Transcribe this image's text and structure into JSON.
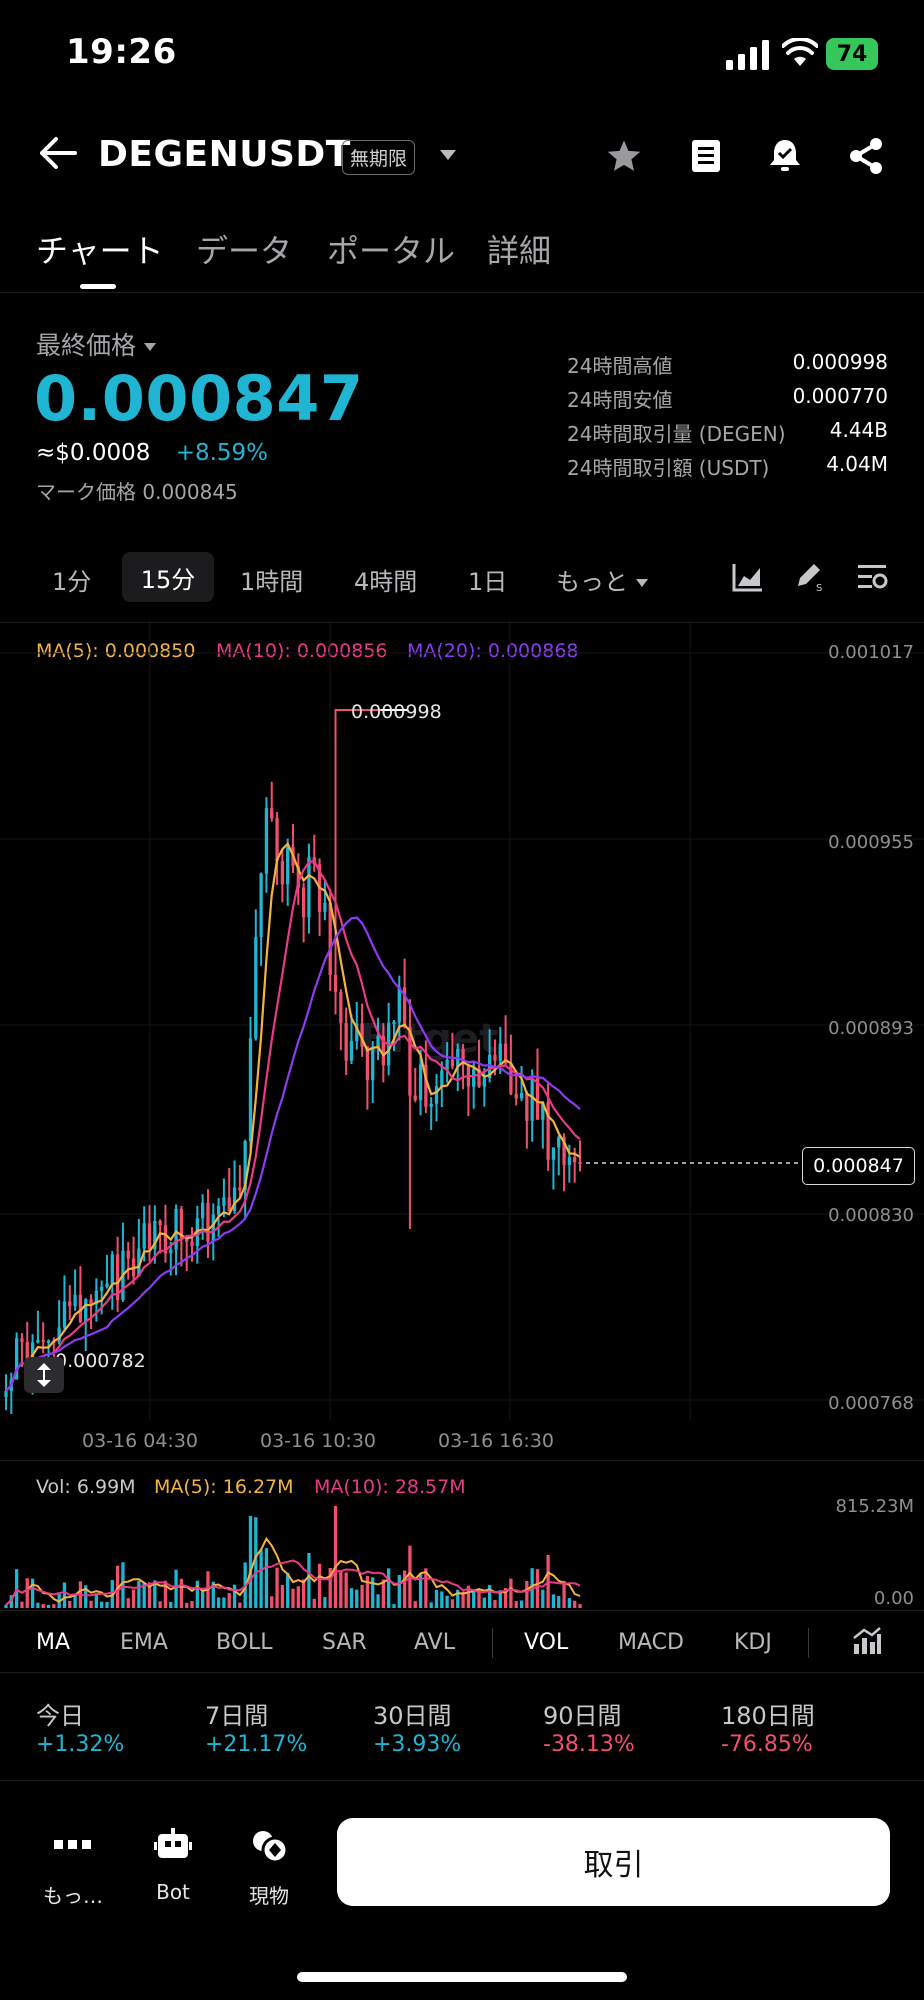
{
  "status": {
    "time": "19:26",
    "battery": "74"
  },
  "header": {
    "pair": "DEGENUSDT",
    "contract_type": "無期限"
  },
  "tabs": [
    "チャート",
    "データ",
    "ポータル",
    "詳細"
  ],
  "price": {
    "label": "最終価格",
    "last": "0.000847",
    "usd": "≈$0.0008",
    "change": "+8.59%",
    "mark": "マーク価格 0.000845"
  },
  "stats": [
    {
      "label": "24時間高値",
      "value": "0.000998"
    },
    {
      "label": "24時間安値",
      "value": "0.000770"
    },
    {
      "label": "24時間取引量 (DEGEN)",
      "value": "4.44B"
    },
    {
      "label": "24時間取引額 (USDT)",
      "value": "4.04M"
    }
  ],
  "intervals": [
    "1分",
    "15分",
    "1時間",
    "4時間",
    "1日",
    "もっと"
  ],
  "active_interval": "15分",
  "ma_legend": {
    "ma5": "MA(5): 0.000850",
    "ma10": "MA(10): 0.000856",
    "ma20": "MA(20): 0.000868"
  },
  "colors": {
    "up": "#1fb5d3",
    "down": "#f0506e",
    "ma5": "#f5b342",
    "ma10": "#e83a86",
    "ma20": "#8c3cf0"
  },
  "price_axis": [
    "0.001017",
    "0.000955",
    "0.000893",
    "0.000830",
    "0.000768"
  ],
  "current_price_tag": "0.000847",
  "high_marker": "0.000998",
  "low_marker": "0.000782",
  "time_axis": [
    "03-16 04:30",
    "03-16 10:30",
    "03-16 16:30"
  ],
  "volume": {
    "vol": "Vol: 6.99M",
    "ma5": "MA(5): 16.27M",
    "ma10": "MA(10): 28.57M",
    "axis_top": "815.23M",
    "axis_bottom": "0.00"
  },
  "indicators": [
    "MA",
    "EMA",
    "BOLL",
    "SAR",
    "AVL",
    "VOL",
    "MACD",
    "KDJ"
  ],
  "performance": [
    {
      "label": "今日",
      "value": "+1.32%",
      "dir": "up"
    },
    {
      "label": "7日間",
      "value": "+21.17%",
      "dir": "up"
    },
    {
      "label": "30日間",
      "value": "+3.93%",
      "dir": "up"
    },
    {
      "label": "90日間",
      "value": "-38.13%",
      "dir": "down"
    },
    {
      "label": "180日間",
      "value": "-76.85%",
      "dir": "down"
    }
  ],
  "bottom": {
    "more": "もっ…",
    "bot": "Bot",
    "spot": "現物",
    "trade": "取引"
  },
  "chart_data": {
    "type": "candlestick",
    "interval": "15分",
    "ylim": [
      0.000768,
      0.001017
    ],
    "x_ticks": [
      "03-16 04:30",
      "03-16 10:30",
      "03-16 16:30"
    ],
    "y_ticks": [
      0.001017,
      0.000955,
      0.000893,
      0.00083,
      0.000768
    ],
    "close_path": [
      0.00078,
      0.000781,
      0.000785,
      0.000787,
      0.00079,
      0.000793,
      0.000797,
      0.0008,
      0.000803,
      0.000805,
      0.000808,
      0.000812,
      0.000815,
      0.000818,
      0.000822,
      0.000818,
      0.000824,
      0.000822,
      0.000826,
      0.000824,
      0.000828,
      0.00083,
      0.000835,
      0.00089,
      0.00095,
      0.000965,
      0.00094,
      0.000955,
      0.000935,
      0.000948,
      0.000925,
      0.0009,
      0.000885,
      0.000895,
      0.00088,
      0.000888,
      0.000885,
      0.000898,
      0.00087,
      0.000875,
      0.000865,
      0.00087,
      0.00088,
      0.000885,
      0.000875,
      0.00087,
      0.000885,
      0.00088,
      0.000875,
      0.000868,
      0.000865,
      0.000855,
      0.00085,
      0.000848,
      0.000847
    ],
    "high": 0.000998,
    "low": 0.000782,
    "last": 0.000847
  }
}
